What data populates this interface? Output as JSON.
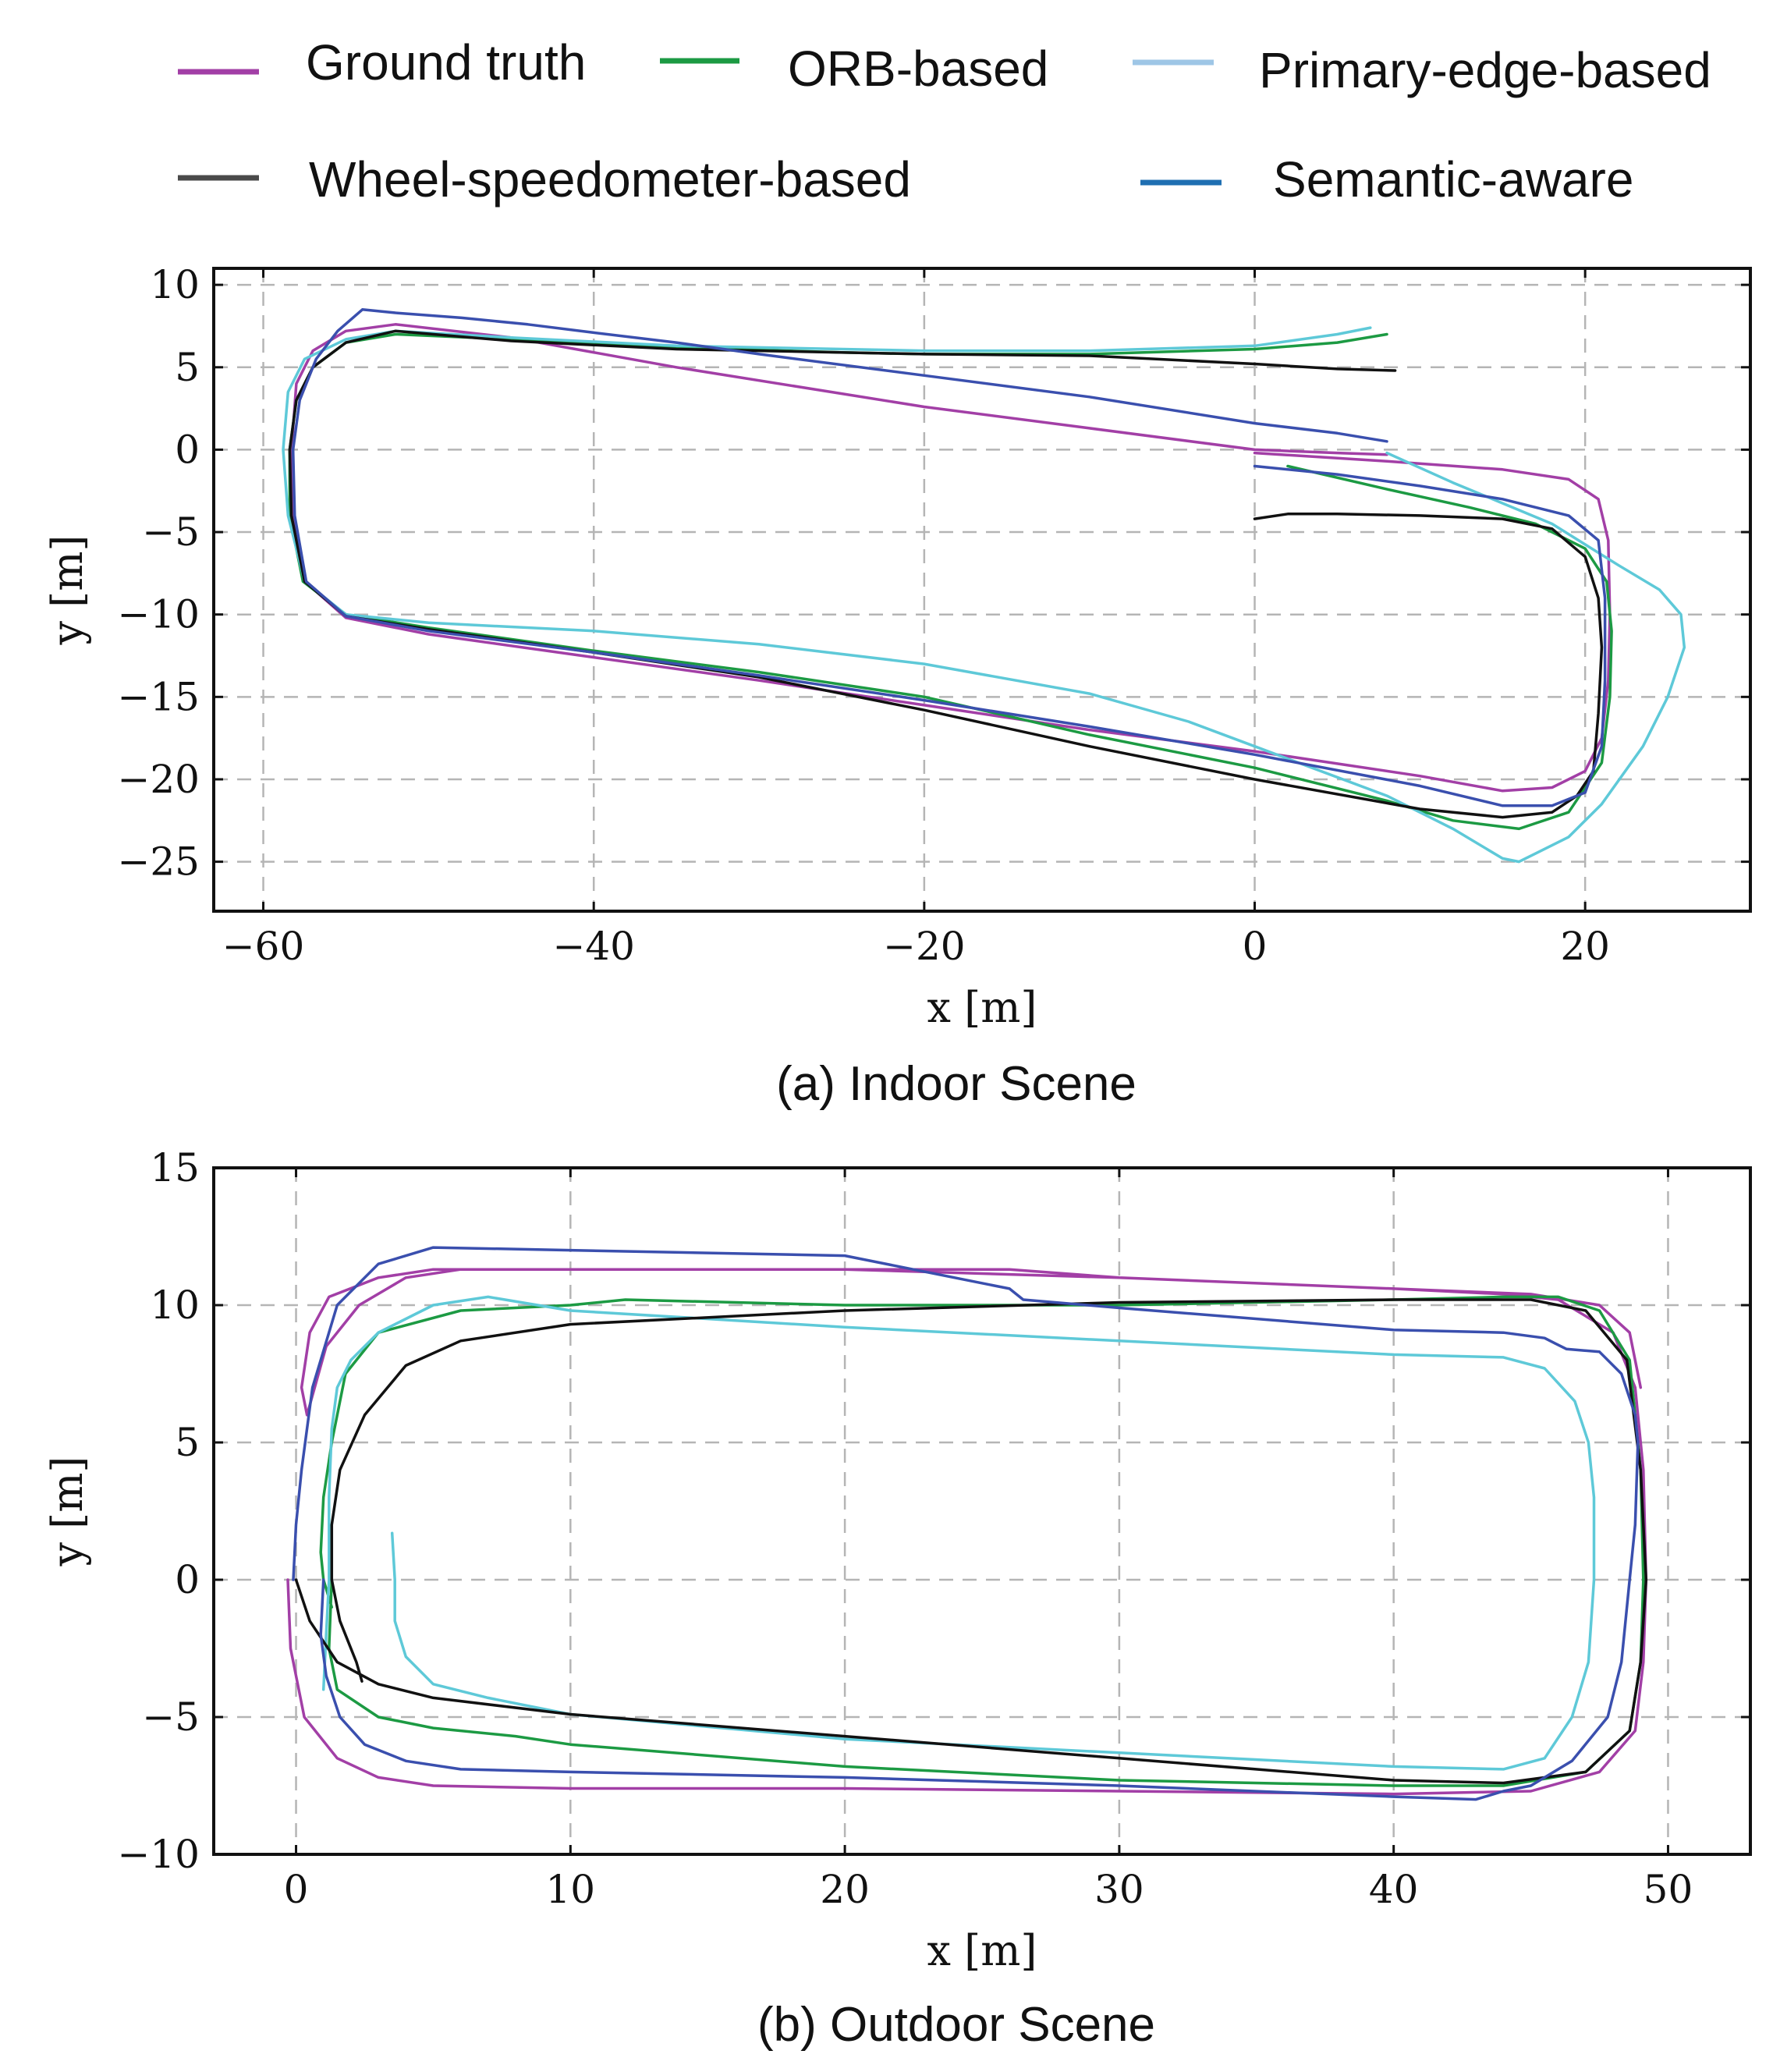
{
  "legend": {
    "entries": [
      {
        "key": "gt",
        "label": "Ground truth",
        "color": "#a23fa6"
      },
      {
        "key": "orb",
        "label": "ORB-based",
        "color": "#1c9a43"
      },
      {
        "key": "edge",
        "label": "Primary-edge-based",
        "color": "#9ec6e6"
      },
      {
        "key": "wheel",
        "label": "Wheel-speedometer-based",
        "color": "#4a4a4a"
      },
      {
        "key": "sem",
        "label": "Semantic-aware",
        "color": "#1f6fb2"
      }
    ]
  },
  "series_colors": {
    "gt": "#a23fa6",
    "orb": "#1c9a43",
    "edge": "#5ec9d8",
    "wheel": "#111111",
    "sem": "#3a4fae"
  },
  "chart_data": [
    {
      "type": "line",
      "id": "indoor",
      "caption": "(a) Indoor Scene",
      "xlabel": "x [m]",
      "ylabel": "y [m]",
      "xlim": [
        -63,
        30
      ],
      "ylim": [
        -28,
        11
      ],
      "xticks": [
        -60,
        -40,
        -20,
        0,
        20
      ],
      "yticks": [
        10,
        5,
        0,
        -5,
        -10,
        -15,
        -20,
        -25
      ],
      "xtick_labels": [
        "−60",
        "−40",
        "−20",
        "0",
        "20"
      ],
      "ytick_labels": [
        "10",
        "5",
        "0",
        "−5",
        "−10",
        "−15",
        "−20",
        "−25"
      ],
      "grid": true,
      "series": [
        {
          "key": "gt",
          "name": "Ground truth",
          "x": [
            0,
            8,
            15,
            19,
            20.8,
            21.4,
            21.5,
            21.4,
            21,
            20,
            18,
            15,
            10,
            0,
            -10,
            -20,
            -30,
            -40,
            -50,
            -55,
            -57.5,
            -58.2,
            -58.3,
            -58,
            -57,
            -55,
            -52,
            -45,
            -35,
            -20,
            -10,
            0,
            5,
            8
          ],
          "y": [
            -0.2,
            -0.7,
            -1.2,
            -1.8,
            -3,
            -5.5,
            -10,
            -14,
            -17.5,
            -19.5,
            -20.5,
            -20.7,
            -19.8,
            -18.3,
            -17,
            -15.5,
            -14,
            -12.6,
            -11.2,
            -10.2,
            -8,
            -4,
            0,
            4,
            6,
            7.2,
            7.6,
            6.8,
            5,
            2.6,
            1.3,
            0,
            -0.2,
            -0.3
          ]
        },
        {
          "key": "orb",
          "name": "ORB-based",
          "x": [
            2,
            8,
            13,
            17,
            20,
            21.3,
            21.6,
            21.5,
            21,
            19,
            16,
            12,
            8,
            0,
            -10,
            -20,
            -30,
            -40,
            -50,
            -55,
            -57.6,
            -58.4,
            -58.4,
            -58,
            -57,
            -55,
            -52,
            -45,
            -35,
            -25,
            -20,
            -10,
            0,
            5,
            8
          ],
          "y": [
            -1,
            -2.4,
            -3.5,
            -4.5,
            -6,
            -8,
            -11,
            -15,
            -19,
            -22,
            -23,
            -22.5,
            -21.3,
            -19.3,
            -17.3,
            -15,
            -13.5,
            -12.2,
            -10.8,
            -10,
            -8,
            -4,
            0,
            3,
            5,
            6.5,
            7,
            6.7,
            6.2,
            5.9,
            5.8,
            5.8,
            6.1,
            6.5,
            7
          ]
        },
        {
          "key": "edge",
          "name": "Primary-edge-based",
          "x": [
            8,
            12,
            18,
            22,
            24.5,
            25.8,
            26,
            25,
            23.5,
            21,
            19,
            17,
            16,
            15,
            12,
            8,
            0,
            -4,
            -10,
            -20,
            -30,
            -40,
            -50,
            -55,
            -57.5,
            -58.5,
            -58.8,
            -58.5,
            -57.5,
            -55,
            -52,
            -45,
            -35,
            -20,
            -10,
            0,
            5,
            7
          ],
          "y": [
            -0.2,
            -2,
            -4.5,
            -7,
            -8.5,
            -10,
            -12,
            -15,
            -18,
            -21.5,
            -23.5,
            -24.5,
            -25,
            -24.8,
            -23,
            -21,
            -18,
            -16.5,
            -14.8,
            -13,
            -11.8,
            -11,
            -10.5,
            -10,
            -8,
            -4,
            0,
            3.5,
            5.5,
            6.7,
            7.2,
            6.8,
            6.3,
            6,
            6,
            6.3,
            7,
            7.4
          ]
        },
        {
          "key": "wheel",
          "name": "Wheel-speedometer-based",
          "x": [
            0,
            2,
            5,
            10,
            15,
            18,
            20,
            20.8,
            21,
            20.8,
            20.5,
            19.5,
            18,
            15,
            10,
            0,
            -10,
            -20,
            -30,
            -40,
            -50,
            -55,
            -57.5,
            -58.3,
            -58.4,
            -58,
            -57,
            -55,
            -52,
            -45,
            -35,
            -20,
            -10,
            0,
            5,
            8.5
          ],
          "y": [
            -4.2,
            -3.9,
            -3.9,
            -4,
            -4.2,
            -4.8,
            -6.5,
            -9,
            -12,
            -16,
            -19.5,
            -21,
            -22,
            -22.3,
            -21.8,
            -20,
            -18,
            -15.8,
            -13.8,
            -12.3,
            -10.9,
            -10.1,
            -8,
            -4,
            0,
            3,
            5,
            6.5,
            7.2,
            6.6,
            6.1,
            5.8,
            5.7,
            5.2,
            4.9,
            4.8
          ]
        },
        {
          "key": "sem",
          "name": "Semantic-aware",
          "x": [
            0,
            5,
            10,
            15,
            19,
            20.8,
            21.2,
            21.2,
            21,
            20,
            18,
            15,
            10,
            0,
            -10,
            -20,
            -30,
            -40,
            -50,
            -55,
            -57.4,
            -58.1,
            -58.2,
            -57.8,
            -56.8,
            -55.5,
            -54,
            -52,
            -48,
            -44,
            -40,
            -35,
            -30,
            -20,
            -10,
            0,
            5,
            8
          ],
          "y": [
            -1,
            -1.5,
            -2.2,
            -3,
            -4,
            -5.5,
            -9,
            -14,
            -18,
            -20.8,
            -21.6,
            -21.6,
            -20.4,
            -18.5,
            -16.8,
            -15.2,
            -13.7,
            -12.3,
            -11,
            -10.1,
            -8,
            -4,
            0,
            3,
            5.5,
            7.2,
            8.5,
            8.3,
            8,
            7.6,
            7.1,
            6.5,
            5.8,
            4.5,
            3.2,
            1.6,
            1,
            0.5
          ]
        }
      ]
    },
    {
      "type": "line",
      "id": "outdoor",
      "caption": "(b) Outdoor Scene",
      "xlabel": "x [m]",
      "ylabel": "y [m]",
      "xlim": [
        -3,
        53
      ],
      "ylim": [
        -10,
        15
      ],
      "xticks": [
        0,
        10,
        20,
        30,
        40,
        50
      ],
      "yticks": [
        15,
        10,
        5,
        0,
        -5,
        -10
      ],
      "xtick_labels": [
        "0",
        "10",
        "20",
        "30",
        "40",
        "50"
      ],
      "ytick_labels": [
        "15",
        "10",
        "5",
        "0",
        "−5",
        "−10"
      ],
      "grid": true,
      "series": [
        {
          "key": "gt",
          "name": "Ground truth",
          "x": [
            -0.3,
            -0.2,
            0.3,
            1.5,
            3,
            5,
            10,
            20,
            30,
            40,
            45,
            47.5,
            48.8,
            49.1,
            49.2,
            49.1,
            48.8,
            48,
            46,
            44,
            40,
            30,
            20,
            10,
            5,
            3,
            1.2,
            0.5,
            0.2,
            0.4,
            1.1,
            2.3,
            4,
            6,
            10,
            20,
            26,
            30,
            40,
            45,
            47.5,
            48.6,
            49
          ],
          "y": [
            0,
            -2.5,
            -5,
            -6.5,
            -7.2,
            -7.5,
            -7.6,
            -7.6,
            -7.7,
            -7.8,
            -7.7,
            -7,
            -5.5,
            -3,
            0,
            4,
            7,
            9,
            10.2,
            10.4,
            10.6,
            11,
            11.3,
            11.3,
            11.3,
            11,
            10.3,
            9,
            7,
            6,
            8.5,
            10,
            11,
            11.3,
            11.3,
            11.3,
            11.3,
            11,
            10.6,
            10.4,
            10,
            9,
            7
          ]
        },
        {
          "key": "orb",
          "name": "ORB-based",
          "x": [
            1.3,
            1.2,
            1.5,
            3,
            5,
            8,
            10,
            20,
            30,
            40,
            44,
            47,
            48.6,
            49,
            49.1,
            49,
            48.6,
            47.5,
            46,
            44,
            40,
            30,
            20,
            12,
            10,
            6,
            3,
            1.8,
            1.3,
            1,
            0.9,
            1,
            1.3
          ],
          "y": [
            0,
            -2.5,
            -4,
            -5,
            -5.4,
            -5.7,
            -6,
            -6.8,
            -7.3,
            -7.5,
            -7.5,
            -7,
            -5.5,
            -3,
            0,
            4,
            8,
            9.8,
            10.3,
            10.3,
            10.2,
            10,
            10,
            10.2,
            10,
            9.8,
            9,
            7.5,
            5,
            3,
            1,
            0,
            -1
          ]
        },
        {
          "key": "edge",
          "name": "Primary-edge-based",
          "x": [
            3.5,
            3.6,
            3.6,
            4,
            5,
            7,
            10,
            20,
            30,
            40,
            44,
            45.5,
            46.5,
            47.1,
            47.3,
            47.3,
            47.1,
            46.6,
            45.5,
            44,
            40,
            30,
            20,
            10,
            7,
            5,
            3,
            2,
            1.5,
            1.3,
            1.2,
            1.2,
            1.1,
            1
          ],
          "y": [
            1.7,
            0,
            -1.5,
            -2.8,
            -3.8,
            -4.3,
            -4.9,
            -5.8,
            -6.3,
            -6.8,
            -6.9,
            -6.5,
            -5,
            -3,
            0,
            3,
            5,
            6.5,
            7.7,
            8.1,
            8.2,
            8.7,
            9.2,
            9.8,
            10.3,
            10,
            9,
            8,
            7,
            5.5,
            3,
            0,
            -2,
            -4
          ]
        },
        {
          "key": "wheel",
          "name": "Wheel-speedometer-based",
          "x": [
            0,
            0.5,
            1.5,
            3,
            5,
            10,
            20,
            30,
            40,
            44,
            47,
            48.6,
            49,
            49.2,
            49,
            48.5,
            47,
            45,
            40,
            30,
            20,
            10,
            6,
            4,
            2.5,
            1.6,
            1.3,
            1.3,
            1.6,
            2.2,
            2.4
          ],
          "y": [
            0,
            -1.5,
            -3,
            -3.8,
            -4.3,
            -4.9,
            -5.7,
            -6.5,
            -7.3,
            -7.4,
            -7,
            -5.5,
            -3,
            0,
            4,
            8,
            9.8,
            10.2,
            10.2,
            10.1,
            9.8,
            9.3,
            8.7,
            7.8,
            6,
            4,
            2,
            0,
            -1.5,
            -3,
            -3.7
          ]
        },
        {
          "key": "sem",
          "name": "Semantic-aware",
          "x": [
            1,
            0.9,
            1.1,
            1.6,
            2.5,
            4,
            6,
            10,
            20,
            30,
            40,
            43,
            44,
            45,
            46.5,
            47.8,
            48.3,
            48.6,
            48.8,
            48.9,
            48.8,
            48.3,
            47.5,
            46.3,
            45.9,
            45.5,
            44,
            40,
            30,
            26.5,
            26,
            20,
            10,
            5,
            3,
            1.5,
            0.6,
            0.2,
            0,
            -0.1
          ],
          "y": [
            0,
            -2,
            -3.5,
            -5,
            -6,
            -6.6,
            -6.9,
            -7,
            -7.2,
            -7.5,
            -7.9,
            -8,
            -7.7,
            -7.5,
            -6.6,
            -5,
            -3,
            0,
            2,
            5,
            6,
            7.5,
            8.3,
            8.4,
            8.6,
            8.8,
            9,
            9.1,
            9.9,
            10.2,
            10.6,
            11.8,
            12,
            12.1,
            11.5,
            10,
            7,
            4,
            2,
            0
          ]
        }
      ]
    }
  ]
}
